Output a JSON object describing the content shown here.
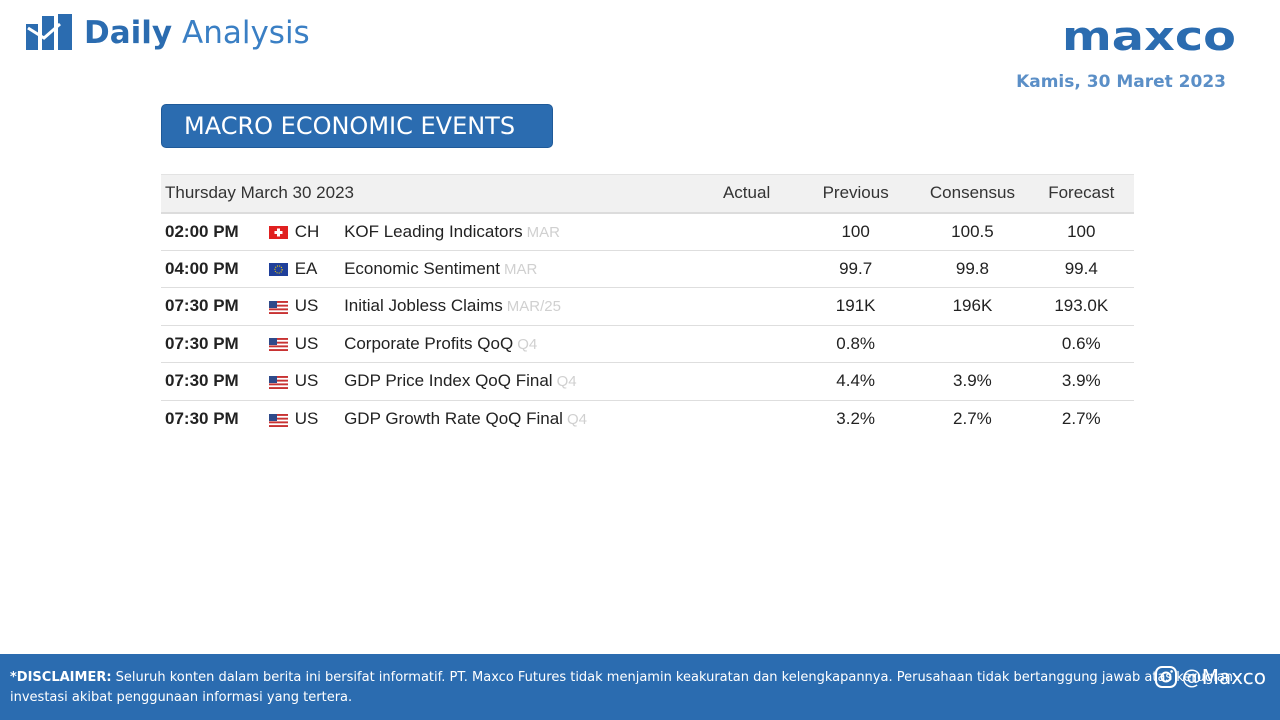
{
  "header": {
    "title_bold": "Daily",
    "title_light": "Analysis",
    "logo_text": "maxco",
    "date": "Kamis, 30 Maret 2023"
  },
  "section_title": "MACRO ECONOMIC EVENTS",
  "table": {
    "date_header": "Thursday March 30 2023",
    "columns": [
      "Actual",
      "Previous",
      "Consensus",
      "Forecast"
    ],
    "rows": [
      {
        "time": "02:00 PM",
        "flag": "switzerland-flag-icon",
        "country": "CH",
        "event": "KOF Leading Indicators",
        "period": "MAR",
        "actual": "",
        "previous": "100",
        "consensus": "100.5",
        "forecast": "100"
      },
      {
        "time": "04:00 PM",
        "flag": "eu-flag-icon",
        "country": "EA",
        "event": "Economic Sentiment",
        "period": "MAR",
        "actual": "",
        "previous": "99.7",
        "consensus": "99.8",
        "forecast": "99.4"
      },
      {
        "time": "07:30 PM",
        "flag": "us-flag-icon",
        "country": "US",
        "event": "Initial Jobless Claims",
        "period": "MAR/25",
        "actual": "",
        "previous": "191K",
        "consensus": "196K",
        "forecast": "193.0K"
      },
      {
        "time": "07:30 PM",
        "flag": "us-flag-icon",
        "country": "US",
        "event": "Corporate Profits QoQ",
        "period": "Q4",
        "actual": "",
        "previous": "0.8%",
        "consensus": "",
        "forecast": "0.6%"
      },
      {
        "time": "07:30 PM",
        "flag": "us-flag-icon",
        "country": "US",
        "event": "GDP Price Index QoQ Final",
        "period": "Q4",
        "actual": "",
        "previous": "4.4%",
        "consensus": "3.9%",
        "forecast": "3.9%"
      },
      {
        "time": "07:30 PM",
        "flag": "us-flag-icon",
        "country": "US",
        "event": "GDP Growth Rate QoQ Final",
        "period": "Q4",
        "actual": "",
        "previous": "3.2%",
        "consensus": "2.7%",
        "forecast": "2.7%"
      }
    ]
  },
  "footer": {
    "disclaimer_label": "*DISCLAIMER:",
    "disclaimer_text": " Seluruh konten dalam berita ini bersifat informatif. PT. Maxco Futures tidak menjamin keakuratan dan kelengkapannya. Perusahaan tidak bertanggung jawab atas kerugian investasi akibat penggunaan informasi yang tertera.",
    "social_handle": "@Maxco"
  },
  "colors": {
    "brand_blue": "#2b6cb0",
    "value_green": "#226b1f"
  }
}
